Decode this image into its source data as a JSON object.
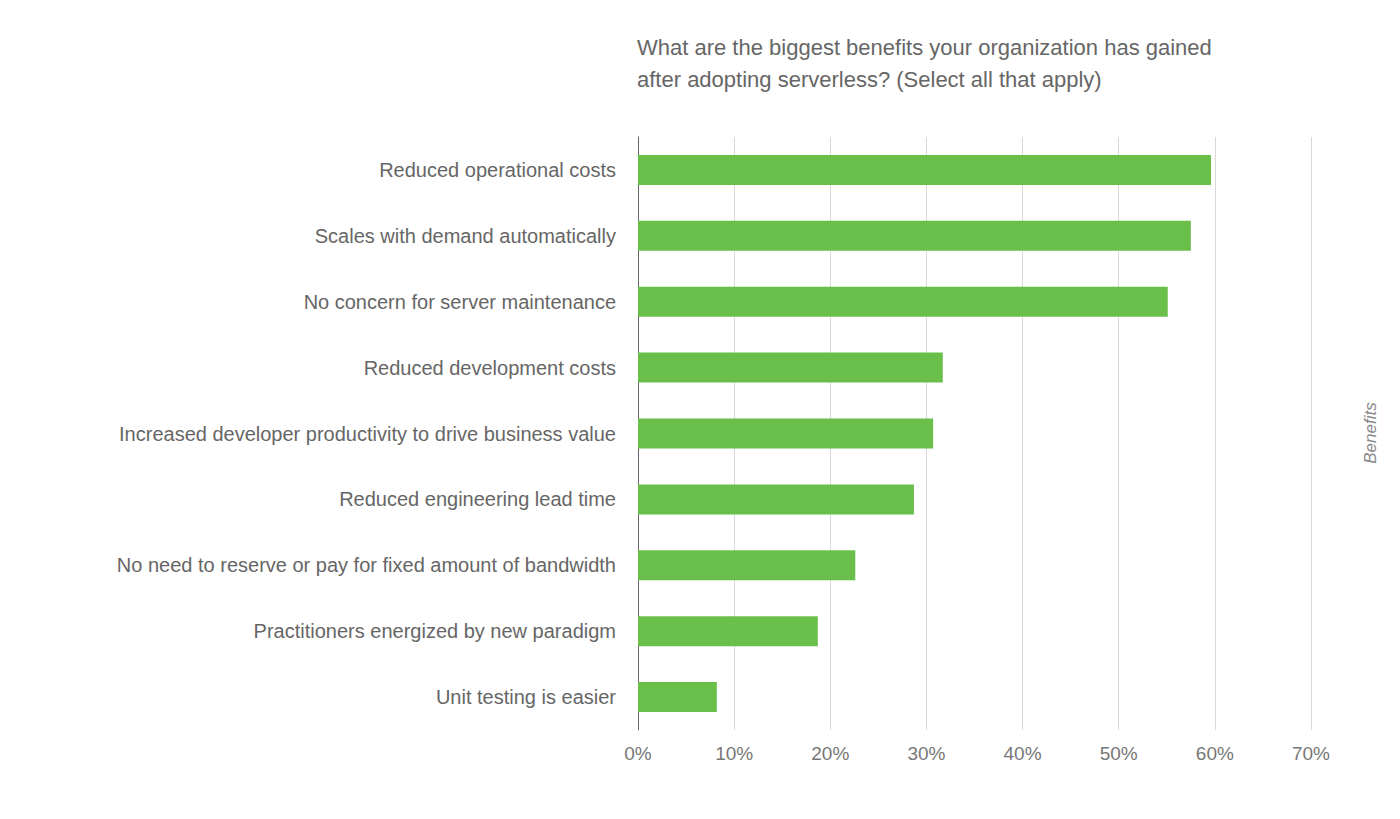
{
  "chart_data": {
    "type": "bar",
    "title": "What are the biggest benefits your organization has gained after adopting serverless? (Select all that apply)",
    "ylabel": "Benefits",
    "orientation": "horizontal",
    "categories": [
      "Reduced operational costs",
      "Scales with demand automatically",
      "No concern for server maintenance",
      "Reduced development costs",
      "Increased developer productivity to drive business value",
      "Reduced engineering lead time",
      "No need to reserve or pay for fixed amount of bandwidth",
      "Practitioners energized by new paradigm",
      "Unit testing is easier"
    ],
    "values": [
      59.6,
      57.5,
      55.1,
      31.7,
      30.7,
      28.7,
      22.6,
      18.7,
      8.2
    ],
    "color": "#6abf4b",
    "xlim": [
      0,
      70
    ],
    "xticks": [
      {
        "value": 0,
        "label": "0%"
      },
      {
        "value": 10,
        "label": "10%"
      },
      {
        "value": 20,
        "label": "20%"
      },
      {
        "value": 30,
        "label": "30%"
      },
      {
        "value": 40,
        "label": "40%"
      },
      {
        "value": 50,
        "label": "50%"
      },
      {
        "value": 60,
        "label": "60%"
      },
      {
        "value": 70,
        "label": "70%"
      }
    ],
    "grid": true
  }
}
